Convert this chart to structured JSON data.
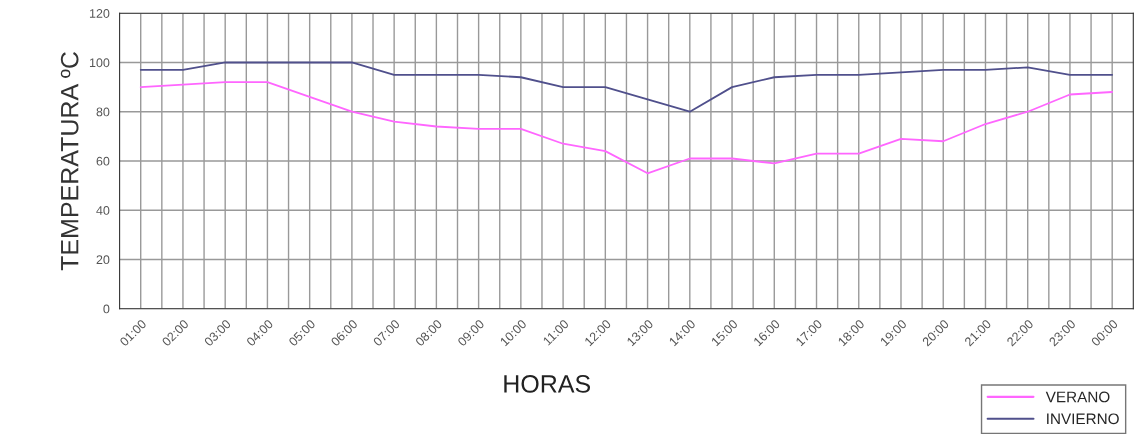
{
  "chart_data": {
    "type": "line",
    "categories": [
      "01:00",
      "02:00",
      "03:00",
      "04:00",
      "05:00",
      "06:00",
      "07:00",
      "08:00",
      "09:00",
      "10:00",
      "11:00",
      "12:00",
      "13:00",
      "14:00",
      "15:00",
      "16:00",
      "17:00",
      "18:00",
      "19:00",
      "20:00",
      "21:00",
      "22:00",
      "23:00",
      "00:00"
    ],
    "series": [
      {
        "name": "VERANO",
        "color": "#ff66ff",
        "values": [
          90,
          91,
          92,
          92,
          86,
          80,
          76,
          74,
          73,
          73,
          67,
          64,
          55,
          61,
          61,
          59,
          63,
          63,
          69,
          68,
          75,
          80,
          87,
          88
        ]
      },
      {
        "name": "INVIERNO",
        "color": "#50508c",
        "values": [
          97,
          97,
          100,
          100,
          100,
          100,
          95,
          95,
          95,
          94,
          90,
          90,
          85,
          80,
          90,
          94,
          95,
          95,
          96,
          97,
          97,
          98,
          95,
          95
        ]
      }
    ],
    "xlabel": "HORAS",
    "ylabel": "TEMPERATURA ºC",
    "ylim": [
      0,
      120
    ],
    "yticks": [
      0,
      20,
      40,
      60,
      80,
      100,
      120
    ],
    "grid": true,
    "legend": "bottom right",
    "marker": "none",
    "line_style": "solid"
  }
}
